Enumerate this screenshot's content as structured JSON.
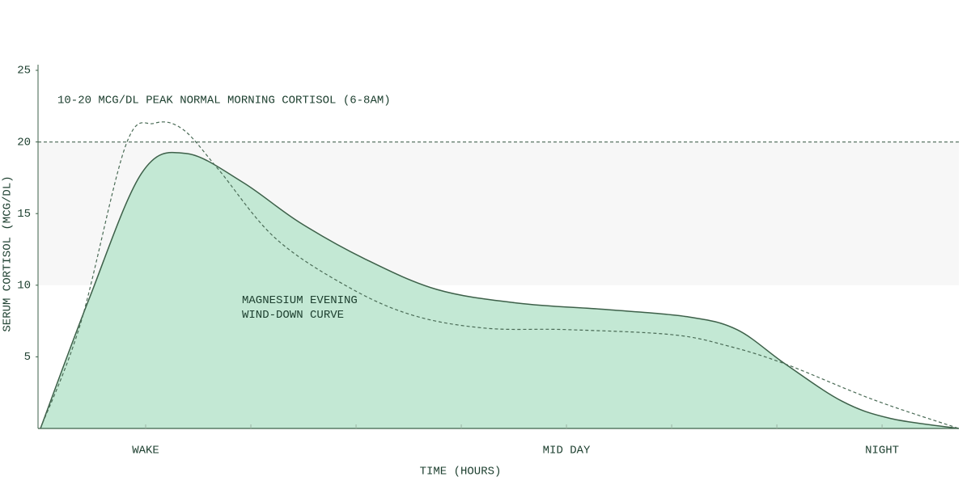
{
  "chart_data": {
    "type": "area",
    "xlabel": "TIME (HOURS)",
    "ylabel": "SERUM CORTISOL (MCG/DL)",
    "xlim": [
      0,
      8.73
    ],
    "ylim": [
      0,
      25
    ],
    "xticks": [
      {
        "value": 1,
        "label": "WAKE"
      },
      {
        "value": 2,
        "label": null
      },
      {
        "value": 3,
        "label": null
      },
      {
        "value": 4,
        "label": null
      },
      {
        "value": 5,
        "label": "MID DAY"
      },
      {
        "value": 6,
        "label": null
      },
      {
        "value": 7,
        "label": null
      },
      {
        "value": 8,
        "label": "NIGHT"
      }
    ],
    "yticks": [
      5,
      10,
      15,
      20,
      25
    ],
    "reference_band": {
      "range": [
        10,
        20
      ],
      "label": "10-20 MCG/DL PEAK NORMAL MORNING CORTISOL (6-8AM)",
      "color": "#f7f7f7",
      "line_color": "#5a7565"
    },
    "series": [
      {
        "name": "MAGNESIUM EVENING WIND-DOWN CURVE",
        "color": "#3d6049",
        "fill": "#c3e8d4",
        "x": [
          0,
          0.46,
          0.96,
          1.38,
          1.92,
          2.46,
          3.08,
          3.77,
          4.54,
          5.38,
          6.15,
          6.62,
          7.08,
          7.62,
          8.08,
          8.73
        ],
        "values": [
          0,
          9.0,
          17.8,
          19.2,
          17.2,
          14.4,
          11.85,
          9.7,
          8.75,
          8.3,
          7.8,
          6.9,
          4.5,
          1.9,
          0.7,
          0
        ]
      },
      {
        "color": "#4a6b56",
        "style": "dashed",
        "x": [
          0,
          0.38,
          0.81,
          1.08,
          1.35,
          1.69,
          2.23,
          2.92,
          3.54,
          4.23,
          5,
          6,
          6.54,
          7.08,
          7.92,
          8.73
        ],
        "values": [
          0,
          7.3,
          19.75,
          21.3,
          20.9,
          18.1,
          13.3,
          9.9,
          7.9,
          7.0,
          6.9,
          6.55,
          5.75,
          4.5,
          2.0,
          0
        ]
      }
    ]
  }
}
